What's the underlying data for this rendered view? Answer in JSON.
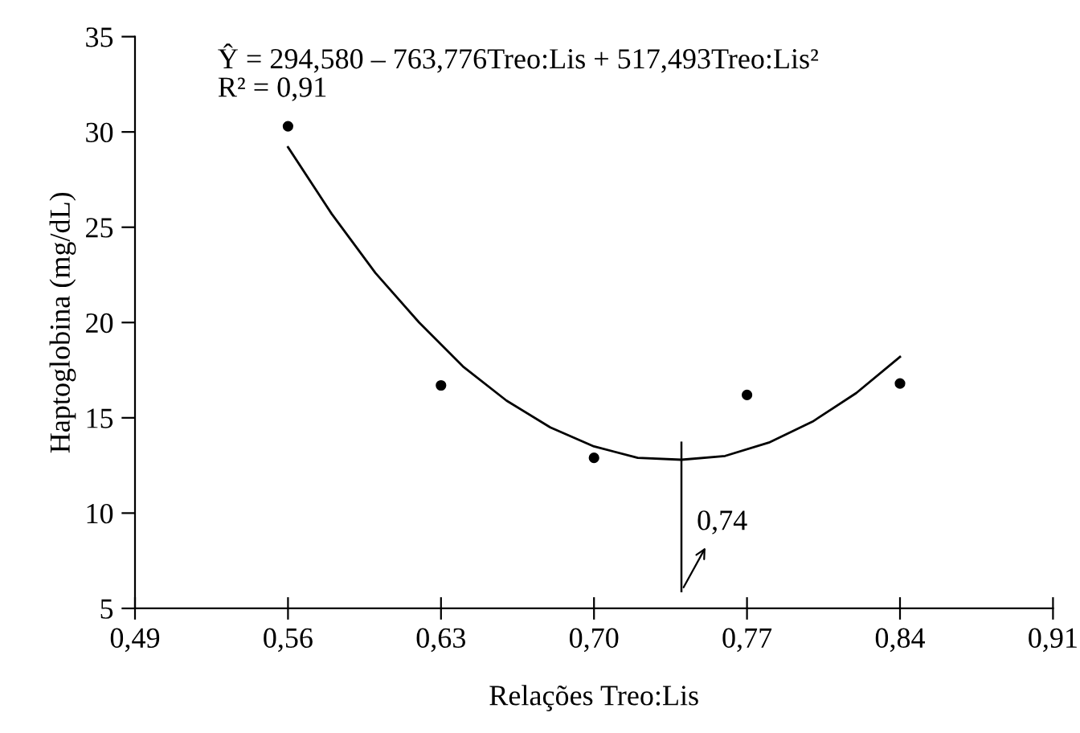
{
  "chart_data": {
    "type": "scatter",
    "xlabel": "Relações Treo:Lis",
    "ylabel": "Haptoglobina (mg/dL)",
    "series": [
      {
        "color": "#000000",
        "marker": "circle",
        "x": [
          0.56,
          0.63,
          0.7,
          0.77,
          0.84
        ],
        "values": [
          30.3,
          16.7,
          12.9,
          16.2,
          16.8
        ]
      },
      {
        "type": "line",
        "color": "#000000",
        "marker": "none",
        "line_style": "solid",
        "x": [
          0.56,
          0.58,
          0.6,
          0.62,
          0.64,
          0.66,
          0.68,
          0.7,
          0.72,
          0.74,
          0.76,
          0.78,
          0.8,
          0.82,
          0.84
        ],
        "values": [
          29.2,
          25.7,
          22.6,
          20.0,
          17.7,
          15.9,
          14.5,
          13.5,
          12.9,
          12.8,
          13.0,
          13.7,
          14.8,
          16.3,
          18.2
        ]
      }
    ],
    "xlim": [
      0.49,
      0.91
    ],
    "xticks": [
      {
        "value": 0.49,
        "label": "0,49"
      },
      {
        "value": 0.56,
        "label": "0,56"
      },
      {
        "value": 0.63,
        "label": "0,63"
      },
      {
        "value": 0.7,
        "label": "0,70"
      },
      {
        "value": 0.77,
        "label": "0,77"
      },
      {
        "value": 0.84,
        "label": "0,84"
      },
      {
        "value": 0.91,
        "label": "0,91"
      }
    ],
    "ylim": [
      5,
      35
    ],
    "yticks": [
      5,
      10,
      15,
      20,
      25,
      30,
      35
    ],
    "grid": false,
    "legend": false,
    "annotations": [
      "Ŷ = 294,580 – 763,776Treo:Lis + 517,493Treo:Lis²\nR² = 0,91",
      {
        "text": "0,74",
        "x": 0.74,
        "y": 12.8
      }
    ]
  }
}
